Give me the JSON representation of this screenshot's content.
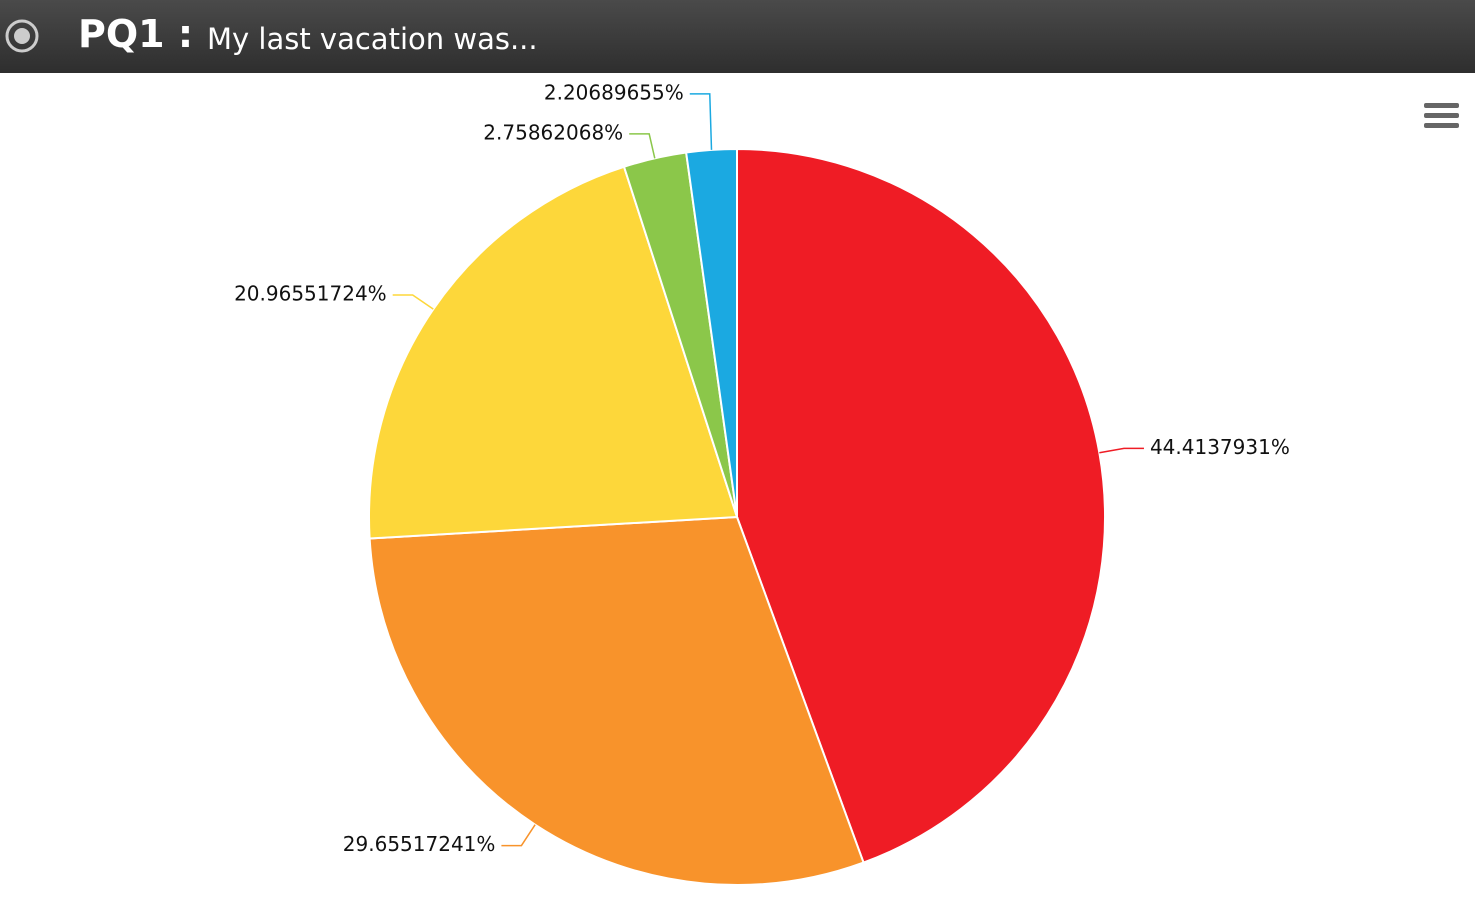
{
  "header": {
    "code": "PQ1 :",
    "question": "My last vacation was..."
  },
  "chart_data": {
    "type": "pie",
    "values": [
      44.4137931,
      29.65517241,
      20.96551724,
      2.75862068,
      2.20689655
    ],
    "value_labels": [
      "44.4137931%",
      "29.65517241%",
      "20.96551724%",
      "2.75862068%",
      "2.20689655%"
    ],
    "colors": [
      "#ef1c25",
      "#f8932b",
      "#fdd73a",
      "#8bc74a",
      "#1ba9e1"
    ]
  }
}
